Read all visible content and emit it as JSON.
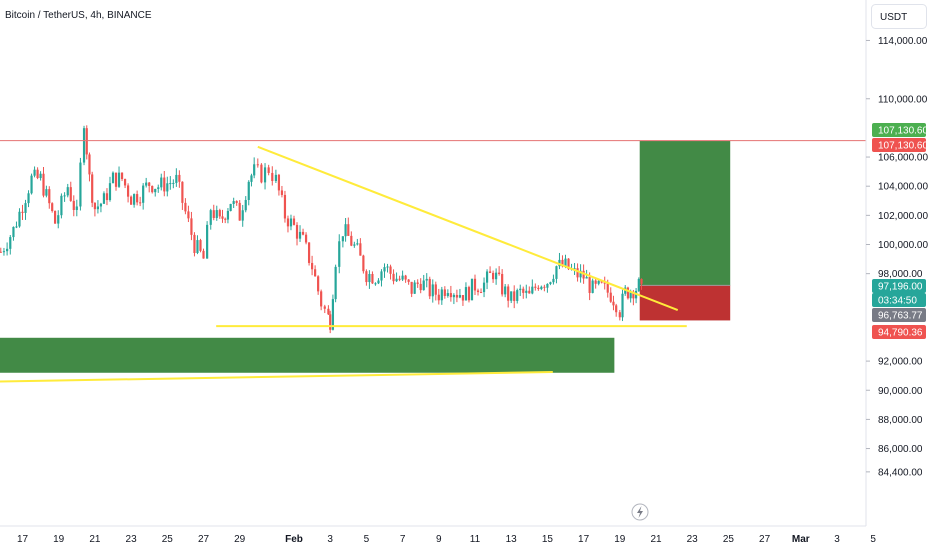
{
  "header": {
    "symbol": "Bitcoin / TetherUS, 4h, BINANCE",
    "currency_button": "USDT"
  },
  "colors": {
    "up": "#26a69a",
    "down": "#ef5350",
    "trendline": "#ffeb3b",
    "resistance": "#e57373",
    "support_zone": "#2e7d32",
    "profit_zone": "#2e7d32",
    "stop_zone": "#b71c1c"
  },
  "chart_data": {
    "type": "candlestick",
    "title": "Bitcoin / TetherUS, 4h, BINANCE",
    "currency": "USDT",
    "y_axis_ticks": [
      "114,000.00",
      "110,000.00",
      "106,000.00",
      "104,000.00",
      "102,000.00",
      "100,000.00",
      "98,000.00",
      "92,000.00",
      "90,000.00",
      "88,000.00",
      "86,000.00",
      "84,400.00"
    ],
    "y_axis_tick_values": [
      114000,
      110000,
      106000,
      104000,
      102000,
      100000,
      98000,
      92000,
      90000,
      88000,
      86000,
      84400
    ],
    "x_axis_ticks": [
      "17",
      "19",
      "21",
      "23",
      "25",
      "27",
      "29",
      "Feb",
      "3",
      "5",
      "7",
      "9",
      "11",
      "13",
      "15",
      "17",
      "19",
      "21",
      "23",
      "25",
      "27",
      "Mar",
      "3",
      "5"
    ],
    "x_axis_tick_days": [
      -15,
      -13,
      -11,
      -9,
      -7,
      -5,
      -3,
      0,
      2,
      4,
      6,
      8,
      10,
      12,
      14,
      16,
      18,
      20,
      22,
      24,
      26,
      28,
      30,
      32
    ],
    "x_axis_bold_ticks": [
      "Feb",
      "Mar"
    ],
    "price_tags": [
      {
        "label": "107,130.60",
        "value": 107130.6,
        "color": "#4caf50"
      },
      {
        "label": "107,130.60",
        "value": 107130.6,
        "color": "#ef5350"
      },
      {
        "label": "97,196.00",
        "value": 97196,
        "color": "#26a69a"
      },
      {
        "label": "03:34:50",
        "value": 96950,
        "color": "#26a69a"
      },
      {
        "label": "96,763.77",
        "value": 96763.77,
        "color": "#787b86"
      },
      {
        "label": "94,790.36",
        "value": 94790.36,
        "color": "#ef5350"
      }
    ],
    "resistance_level": 107130.6,
    "descending_trendline": {
      "start": {
        "day": -2,
        "price": 106700
      },
      "end": {
        "day": 21.2,
        "price": 95500
      }
    },
    "support_line": {
      "start": {
        "day": -4.3,
        "price": 94400
      },
      "end": {
        "day": 21.7,
        "price": 94400
      }
    },
    "lower_trendline": {
      "start": {
        "day": -32,
        "price": 90600
      },
      "end": {
        "day": 14.3,
        "price": 91250
      }
    },
    "support_zone": {
      "start_day": -32,
      "end_day": 17.7,
      "top": 93600,
      "bottom": 91200
    },
    "long_position": {
      "start_day": 19.1,
      "end_day": 24.1,
      "entry": 97196,
      "target": 107130.6,
      "stop": 94790.36
    },
    "close_series": {
      "days": [
        -16.2,
        -15.5,
        -14.5,
        -14,
        -13.2,
        -12.5,
        -12,
        -11.6,
        -11.3,
        -11,
        -10.5,
        -10,
        -9.5,
        -9,
        -8.5,
        -8,
        -7.5,
        -6.5,
        -5.5,
        -5,
        -4.6,
        -4.1,
        -3.5,
        -3,
        -2.5,
        -2.2,
        -1.8,
        -1.4,
        -1,
        -0.5,
        0,
        0.5,
        1,
        1.5,
        1.9,
        2,
        2.3,
        2.7,
        3,
        3.5,
        4,
        4.5,
        5,
        5.5,
        6,
        6.5,
        7,
        7.5,
        8,
        8.5,
        9,
        9.5,
        10,
        10.5,
        11,
        11.5,
        12,
        12.5,
        13,
        13.5,
        14,
        14.5,
        15,
        15.5,
        16,
        16.5,
        17,
        17.5,
        17.8,
        18,
        18.3,
        18.6,
        18.9,
        19.2
      ],
      "closes": [
        99500,
        101000,
        104500,
        104500,
        101500,
        104000,
        102000,
        108600,
        104500,
        102500,
        103000,
        104500,
        104500,
        103200,
        103500,
        104200,
        104000,
        104400,
        100000,
        99000,
        102500,
        101500,
        103000,
        102000,
        104500,
        105000,
        104800,
        105200,
        104400,
        102000,
        101200,
        100200,
        98500,
        96000,
        95000,
        94800,
        99000,
        101000,
        100500,
        99500,
        98000,
        97800,
        98500,
        97800,
        97500,
        96900,
        97500,
        96800,
        96600,
        97200,
        96700,
        96600,
        97200,
        97300,
        98100,
        97000,
        96200,
        96700,
        96400,
        97400,
        97500,
        98500,
        98500,
        98000,
        97800,
        96900,
        97000,
        96600,
        96000,
        95500,
        96700,
        96900,
        97000,
        97300
      ]
    }
  }
}
